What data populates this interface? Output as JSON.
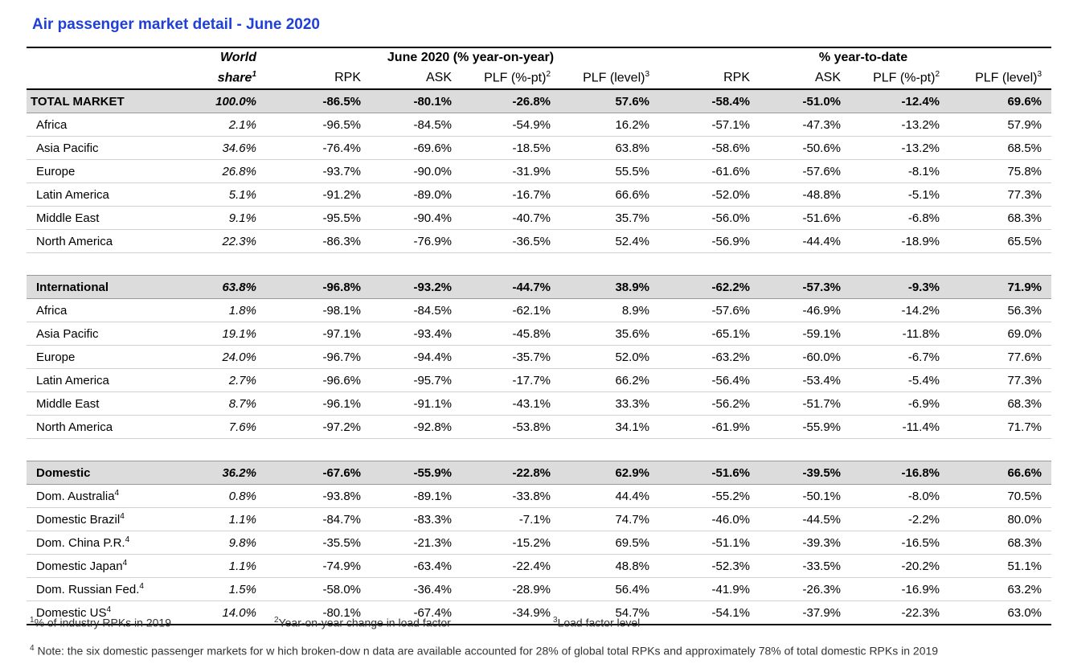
{
  "title": "Air passenger market detail - June 2020",
  "header": {
    "world": "World",
    "share": "share",
    "share_sup": "1",
    "group_june": "June 2020 (% year-on-year)",
    "group_ytd": "% year-to-date",
    "rpk": "RPK",
    "ask": "ASK",
    "plf_pt": "PLF (%-pt)",
    "plf_pt_sup": "2",
    "plf_level": "PLF (level)",
    "plf_level_sup": "3"
  },
  "total": {
    "label": "TOTAL MARKET",
    "v": [
      "100.0%",
      "-86.5%",
      "-80.1%",
      "-26.8%",
      "57.6%",
      "-58.4%",
      "-51.0%",
      "-12.4%",
      "69.6%"
    ]
  },
  "total_rows": [
    {
      "label": "Africa",
      "sup": "",
      "v": [
        "2.1%",
        "-96.5%",
        "-84.5%",
        "-54.9%",
        "16.2%",
        "-57.1%",
        "-47.3%",
        "-13.2%",
        "57.9%"
      ]
    },
    {
      "label": "Asia Pacific",
      "sup": "",
      "v": [
        "34.6%",
        "-76.4%",
        "-69.6%",
        "-18.5%",
        "63.8%",
        "-58.6%",
        "-50.6%",
        "-13.2%",
        "68.5%"
      ]
    },
    {
      "label": "Europe",
      "sup": "",
      "v": [
        "26.8%",
        "-93.7%",
        "-90.0%",
        "-31.9%",
        "55.5%",
        "-61.6%",
        "-57.6%",
        "-8.1%",
        "75.8%"
      ]
    },
    {
      "label": "Latin America",
      "sup": "",
      "v": [
        "5.1%",
        "-91.2%",
        "-89.0%",
        "-16.7%",
        "66.6%",
        "-52.0%",
        "-48.8%",
        "-5.1%",
        "77.3%"
      ]
    },
    {
      "label": "Middle East",
      "sup": "",
      "v": [
        "9.1%",
        "-95.5%",
        "-90.4%",
        "-40.7%",
        "35.7%",
        "-56.0%",
        "-51.6%",
        "-6.8%",
        "68.3%"
      ]
    },
    {
      "label": "North America",
      "sup": "",
      "v": [
        "22.3%",
        "-86.3%",
        "-76.9%",
        "-36.5%",
        "52.4%",
        "-56.9%",
        "-44.4%",
        "-18.9%",
        "65.5%"
      ]
    }
  ],
  "international": {
    "label": "International",
    "v": [
      "63.8%",
      "-96.8%",
      "-93.2%",
      "-44.7%",
      "38.9%",
      "-62.2%",
      "-57.3%",
      "-9.3%",
      "71.9%"
    ]
  },
  "international_rows": [
    {
      "label": "Africa",
      "sup": "",
      "v": [
        "1.8%",
        "-98.1%",
        "-84.5%",
        "-62.1%",
        "8.9%",
        "-57.6%",
        "-46.9%",
        "-14.2%",
        "56.3%"
      ]
    },
    {
      "label": "Asia Pacific",
      "sup": "",
      "v": [
        "19.1%",
        "-97.1%",
        "-93.4%",
        "-45.8%",
        "35.6%",
        "-65.1%",
        "-59.1%",
        "-11.8%",
        "69.0%"
      ]
    },
    {
      "label": "Europe",
      "sup": "",
      "v": [
        "24.0%",
        "-96.7%",
        "-94.4%",
        "-35.7%",
        "52.0%",
        "-63.2%",
        "-60.0%",
        "-6.7%",
        "77.6%"
      ]
    },
    {
      "label": "Latin America",
      "sup": "",
      "v": [
        "2.7%",
        "-96.6%",
        "-95.7%",
        "-17.7%",
        "66.2%",
        "-56.4%",
        "-53.4%",
        "-5.4%",
        "77.3%"
      ]
    },
    {
      "label": "Middle East",
      "sup": "",
      "v": [
        "8.7%",
        "-96.1%",
        "-91.1%",
        "-43.1%",
        "33.3%",
        "-56.2%",
        "-51.7%",
        "-6.9%",
        "68.3%"
      ]
    },
    {
      "label": "North America",
      "sup": "",
      "v": [
        "7.6%",
        "-97.2%",
        "-92.8%",
        "-53.8%",
        "34.1%",
        "-61.9%",
        "-55.9%",
        "-11.4%",
        "71.7%"
      ]
    }
  ],
  "domestic": {
    "label": "Domestic",
    "v": [
      "36.2%",
      "-67.6%",
      "-55.9%",
      "-22.8%",
      "62.9%",
      "-51.6%",
      "-39.5%",
      "-16.8%",
      "66.6%"
    ]
  },
  "domestic_rows": [
    {
      "label": "Dom. Australia",
      "sup": "4",
      "v": [
        "0.8%",
        "-93.8%",
        "-89.1%",
        "-33.8%",
        "44.4%",
        "-55.2%",
        "-50.1%",
        "-8.0%",
        "70.5%"
      ]
    },
    {
      "label": "Domestic Brazil",
      "sup": "4",
      "v": [
        "1.1%",
        "-84.7%",
        "-83.3%",
        "-7.1%",
        "74.7%",
        "-46.0%",
        "-44.5%",
        "-2.2%",
        "80.0%"
      ]
    },
    {
      "label": "Dom. China P.R.",
      "sup": "4",
      "v": [
        "9.8%",
        "-35.5%",
        "-21.3%",
        "-15.2%",
        "69.5%",
        "-51.1%",
        "-39.3%",
        "-16.5%",
        "68.3%"
      ]
    },
    {
      "label": "Domestic Japan",
      "sup": "4",
      "v": [
        "1.1%",
        "-74.9%",
        "-63.4%",
        "-22.4%",
        "48.8%",
        "-52.3%",
        "-33.5%",
        "-20.2%",
        "51.1%"
      ]
    },
    {
      "label": "Dom. Russian Fed.",
      "sup": "4",
      "v": [
        "1.5%",
        "-58.0%",
        "-36.4%",
        "-28.9%",
        "56.4%",
        "-41.9%",
        "-26.3%",
        "-16.9%",
        "63.2%"
      ]
    },
    {
      "label": "Domestic US",
      "sup": "4",
      "v": [
        "14.0%",
        "-80.1%",
        "-67.4%",
        "-34.9%",
        "54.7%",
        "-54.1%",
        "-37.9%",
        "-22.3%",
        "63.0%"
      ]
    }
  ],
  "footnotes": {
    "f1_sup": "1",
    "f1": "% of industry RPKs in 2019",
    "f2_sup": "2",
    "f2": "Year-on-year change in load factor",
    "f3_sup": "3",
    "f3": "Load factor level",
    "f4_sup": "4",
    "f4": " Note: the six domestic passenger markets for w hich broken-dow n data are available accounted for 28% of global total RPKs and approximately 78% of total domestic RPKs in 2019"
  }
}
